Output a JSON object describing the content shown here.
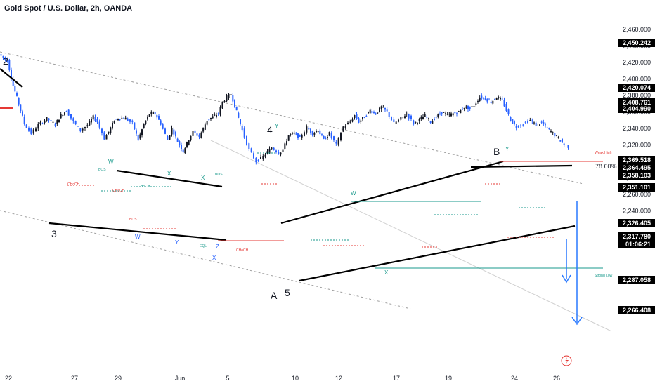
{
  "title": "Gold Spot / U.S. Dollar, 2h, OANDA",
  "colors": {
    "up": "#131722",
    "down": "#2962ff",
    "trend": "#000000",
    "channel": "#9e9e9e",
    "choch_red": "#e53935",
    "bos_green": "#1a9a8c",
    "tag_bg": "#000000",
    "tag_text": "#ffffff"
  },
  "chart_data": {
    "type": "candlestick",
    "symbol": "Gold Spot / U.S. Dollar, 2h, OANDA",
    "ylim": [
      2230,
      2470
    ],
    "y_ticks": [
      2240,
      2260,
      2280,
      2300,
      2320,
      2340,
      2360,
      2380,
      2400,
      2420,
      2440,
      2460
    ],
    "x_ticks": [
      "22",
      "27",
      "29",
      "Jun",
      "5",
      "10",
      "12",
      "17",
      "19",
      "24",
      "26"
    ],
    "price_tags": [
      {
        "value": "2,450.242"
      },
      {
        "value": "2,420.074"
      },
      {
        "value": "2,408.761"
      },
      {
        "value": "2,404.990"
      },
      {
        "value": "2,369.518"
      },
      {
        "value": "2,364.495"
      },
      {
        "value": "2,358.103"
      },
      {
        "value": "2,351.101"
      },
      {
        "value": "2,326.405"
      },
      {
        "value": "2,317.780"
      },
      {
        "value": "01:06:21"
      },
      {
        "value": "2,287.058"
      },
      {
        "value": "2,266.408"
      }
    ],
    "path": [
      [
        0,
        2430
      ],
      [
        12,
        2422
      ],
      [
        20,
        2392
      ],
      [
        28,
        2370
      ],
      [
        36,
        2346
      ],
      [
        46,
        2334
      ],
      [
        56,
        2344
      ],
      [
        68,
        2352
      ],
      [
        80,
        2345
      ],
      [
        88,
        2356
      ],
      [
        96,
        2362
      ],
      [
        106,
        2348
      ],
      [
        116,
        2338
      ],
      [
        126,
        2344
      ],
      [
        134,
        2354
      ],
      [
        140,
        2348
      ],
      [
        150,
        2328
      ],
      [
        156,
        2336
      ],
      [
        164,
        2350
      ],
      [
        172,
        2353
      ],
      [
        180,
        2352
      ],
      [
        190,
        2346
      ],
      [
        198,
        2326
      ],
      [
        206,
        2345
      ],
      [
        214,
        2358
      ],
      [
        222,
        2358
      ],
      [
        230,
        2346
      ],
      [
        240,
        2326
      ],
      [
        246,
        2340
      ],
      [
        254,
        2324
      ],
      [
        262,
        2312
      ],
      [
        270,
        2327
      ],
      [
        276,
        2336
      ],
      [
        285,
        2330
      ],
      [
        296,
        2350
      ],
      [
        304,
        2354
      ],
      [
        312,
        2358
      ],
      [
        318,
        2372
      ],
      [
        324,
        2378
      ],
      [
        330,
        2382
      ],
      [
        338,
        2360
      ],
      [
        346,
        2338
      ],
      [
        356,
        2314
      ],
      [
        366,
        2300
      ],
      [
        376,
        2306
      ],
      [
        388,
        2317
      ],
      [
        398,
        2310
      ],
      [
        404,
        2314
      ],
      [
        412,
        2332
      ],
      [
        420,
        2334
      ],
      [
        428,
        2328
      ],
      [
        438,
        2341
      ],
      [
        446,
        2334
      ],
      [
        454,
        2338
      ],
      [
        462,
        2326
      ],
      [
        470,
        2334
      ],
      [
        480,
        2320
      ],
      [
        490,
        2342
      ],
      [
        500,
        2348
      ],
      [
        506,
        2356
      ],
      [
        512,
        2348
      ],
      [
        520,
        2354
      ],
      [
        528,
        2362
      ],
      [
        536,
        2358
      ],
      [
        544,
        2366
      ],
      [
        552,
        2360
      ],
      [
        562,
        2346
      ],
      [
        572,
        2352
      ],
      [
        580,
        2358
      ],
      [
        590,
        2346
      ],
      [
        598,
        2350
      ],
      [
        606,
        2356
      ],
      [
        614,
        2348
      ],
      [
        622,
        2354
      ],
      [
        630,
        2360
      ],
      [
        638,
        2356
      ],
      [
        646,
        2358
      ],
      [
        654,
        2360
      ],
      [
        662,
        2366
      ],
      [
        670,
        2364
      ],
      [
        676,
        2368
      ],
      [
        684,
        2378
      ],
      [
        692,
        2376
      ],
      [
        700,
        2372
      ],
      [
        708,
        2378
      ],
      [
        716,
        2374
      ],
      [
        722,
        2362
      ],
      [
        728,
        2350
      ],
      [
        736,
        2342
      ],
      [
        746,
        2346
      ],
      [
        756,
        2350
      ],
      [
        764,
        2344
      ],
      [
        772,
        2347
      ],
      [
        780,
        2340
      ],
      [
        788,
        2334
      ],
      [
        796,
        2328
      ],
      [
        804,
        2320
      ],
      [
        810,
        2318
      ]
    ],
    "annotations": {
      "waves": [
        "2",
        "3",
        "4",
        "5",
        "A",
        "B"
      ],
      "teal": [
        "Y",
        "W",
        "X",
        "X",
        "W",
        "X",
        "Y"
      ],
      "blue": [
        "W",
        "Y",
        "Z",
        "X"
      ],
      "fib": "78.60%",
      "labels_small": [
        "CHoCH",
        "BOS",
        "CHoCH",
        "BOS",
        "CHoCH",
        "BOS",
        "CHoCH",
        "EQL",
        "Weak High",
        "Strong Low"
      ]
    }
  }
}
